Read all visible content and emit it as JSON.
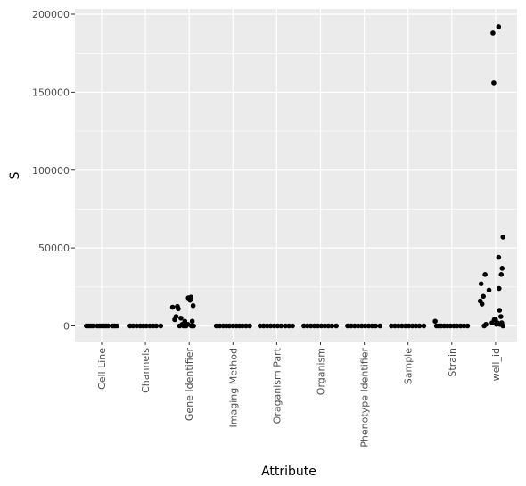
{
  "chart_data": {
    "type": "scatter",
    "xlabel": "Attribute",
    "ylabel": "S",
    "categories": [
      "Cell Line",
      "Channels",
      "Gene Identifier",
      "Imaging Method",
      "Oraganism Part",
      "Organism",
      "Phenotype Identifier",
      "Sample",
      "Strain",
      "well_id"
    ],
    "yticks": [
      0,
      50000,
      100000,
      150000,
      200000
    ],
    "ytick_labels": [
      "0",
      "50000",
      "100000",
      "150000",
      "200000"
    ],
    "ylim": [
      -10000,
      200000
    ],
    "grid": true,
    "colors": {
      "panel": "#ebebeb",
      "grid": "#ffffff",
      "point": "#000000"
    },
    "points": [
      {
        "category": "Cell Line",
        "x": -0.35,
        "y": 0
      },
      {
        "category": "Cell Line",
        "x": -0.3,
        "y": 0
      },
      {
        "category": "Cell Line",
        "x": -0.25,
        "y": 0
      },
      {
        "category": "Cell Line",
        "x": -0.2,
        "y": 0
      },
      {
        "category": "Cell Line",
        "x": -0.1,
        "y": 0
      },
      {
        "category": "Cell Line",
        "x": -0.05,
        "y": 0
      },
      {
        "category": "Cell Line",
        "x": 0.0,
        "y": 0
      },
      {
        "category": "Cell Line",
        "x": 0.05,
        "y": 0
      },
      {
        "category": "Cell Line",
        "x": 0.1,
        "y": 0
      },
      {
        "category": "Cell Line",
        "x": 0.15,
        "y": 0
      },
      {
        "category": "Cell Line",
        "x": 0.25,
        "y": 0
      },
      {
        "category": "Cell Line",
        "x": 0.3,
        "y": 0
      },
      {
        "category": "Cell Line",
        "x": 0.35,
        "y": 0
      },
      {
        "category": "Channels",
        "x": -0.35,
        "y": 0
      },
      {
        "category": "Channels",
        "x": -0.28,
        "y": 0
      },
      {
        "category": "Channels",
        "x": -0.2,
        "y": 0
      },
      {
        "category": "Channels",
        "x": -0.12,
        "y": 0
      },
      {
        "category": "Channels",
        "x": -0.05,
        "y": 0
      },
      {
        "category": "Channels",
        "x": 0.02,
        "y": 0
      },
      {
        "category": "Channels",
        "x": 0.1,
        "y": 0
      },
      {
        "category": "Channels",
        "x": 0.18,
        "y": 0
      },
      {
        "category": "Channels",
        "x": 0.25,
        "y": 0
      },
      {
        "category": "Channels",
        "x": 0.35,
        "y": 0
      },
      {
        "category": "Gene Identifier",
        "x": -0.38,
        "y": 12000
      },
      {
        "category": "Gene Identifier",
        "x": -0.33,
        "y": 4000
      },
      {
        "category": "Gene Identifier",
        "x": -0.3,
        "y": 6000
      },
      {
        "category": "Gene Identifier",
        "x": -0.27,
        "y": 12500
      },
      {
        "category": "Gene Identifier",
        "x": -0.25,
        "y": 11000
      },
      {
        "category": "Gene Identifier",
        "x": -0.22,
        "y": 0
      },
      {
        "category": "Gene Identifier",
        "x": -0.19,
        "y": 5000
      },
      {
        "category": "Gene Identifier",
        "x": -0.16,
        "y": 1000
      },
      {
        "category": "Gene Identifier",
        "x": -0.13,
        "y": 0
      },
      {
        "category": "Gene Identifier",
        "x": -0.1,
        "y": 3000
      },
      {
        "category": "Gene Identifier",
        "x": -0.07,
        "y": 0
      },
      {
        "category": "Gene Identifier",
        "x": -0.03,
        "y": 1000
      },
      {
        "category": "Gene Identifier",
        "x": -0.02,
        "y": 18000
      },
      {
        "category": "Gene Identifier",
        "x": 0.02,
        "y": 16500
      },
      {
        "category": "Gene Identifier",
        "x": 0.04,
        "y": 18500
      },
      {
        "category": "Gene Identifier",
        "x": 0.07,
        "y": 3000
      },
      {
        "category": "Gene Identifier",
        "x": 0.09,
        "y": 13000
      },
      {
        "category": "Gene Identifier",
        "x": 0.1,
        "y": 0
      },
      {
        "category": "Gene Identifier",
        "x": 0.05,
        "y": 0
      },
      {
        "category": "Gene Identifier",
        "x": 0.08,
        "y": 0
      },
      {
        "category": "Imaging Method",
        "x": -0.38,
        "y": 0
      },
      {
        "category": "Imaging Method",
        "x": -0.3,
        "y": 0
      },
      {
        "category": "Imaging Method",
        "x": -0.22,
        "y": 0
      },
      {
        "category": "Imaging Method",
        "x": -0.15,
        "y": 0
      },
      {
        "category": "Imaging Method",
        "x": -0.08,
        "y": 0
      },
      {
        "category": "Imaging Method",
        "x": 0.0,
        "y": 0
      },
      {
        "category": "Imaging Method",
        "x": 0.08,
        "y": 0
      },
      {
        "category": "Imaging Method",
        "x": 0.15,
        "y": 0
      },
      {
        "category": "Imaging Method",
        "x": 0.22,
        "y": 0
      },
      {
        "category": "Imaging Method",
        "x": 0.3,
        "y": 0
      },
      {
        "category": "Imaging Method",
        "x": 0.38,
        "y": 0
      },
      {
        "category": "Oraganism Part",
        "x": -0.38,
        "y": 0
      },
      {
        "category": "Oraganism Part",
        "x": -0.3,
        "y": 0
      },
      {
        "category": "Oraganism Part",
        "x": -0.22,
        "y": 0
      },
      {
        "category": "Oraganism Part",
        "x": -0.14,
        "y": 0
      },
      {
        "category": "Oraganism Part",
        "x": -0.06,
        "y": 0
      },
      {
        "category": "Oraganism Part",
        "x": 0.02,
        "y": 0
      },
      {
        "category": "Oraganism Part",
        "x": 0.1,
        "y": 0
      },
      {
        "category": "Oraganism Part",
        "x": 0.2,
        "y": 0
      },
      {
        "category": "Oraganism Part",
        "x": 0.28,
        "y": 0
      },
      {
        "category": "Oraganism Part",
        "x": 0.36,
        "y": 0
      },
      {
        "category": "Organism",
        "x": -0.38,
        "y": 0
      },
      {
        "category": "Organism",
        "x": -0.3,
        "y": 0
      },
      {
        "category": "Organism",
        "x": -0.22,
        "y": 0
      },
      {
        "category": "Organism",
        "x": -0.14,
        "y": 0
      },
      {
        "category": "Organism",
        "x": -0.06,
        "y": 0
      },
      {
        "category": "Organism",
        "x": 0.02,
        "y": 0
      },
      {
        "category": "Organism",
        "x": 0.1,
        "y": 0
      },
      {
        "category": "Organism",
        "x": 0.18,
        "y": 0
      },
      {
        "category": "Organism",
        "x": 0.26,
        "y": 0
      },
      {
        "category": "Organism",
        "x": 0.36,
        "y": 0
      },
      {
        "category": "Phenotype Identifier",
        "x": -0.38,
        "y": 0
      },
      {
        "category": "Phenotype Identifier",
        "x": -0.3,
        "y": 0
      },
      {
        "category": "Phenotype Identifier",
        "x": -0.22,
        "y": 0
      },
      {
        "category": "Phenotype Identifier",
        "x": -0.14,
        "y": 0
      },
      {
        "category": "Phenotype Identifier",
        "x": -0.06,
        "y": 0
      },
      {
        "category": "Phenotype Identifier",
        "x": 0.02,
        "y": 0
      },
      {
        "category": "Phenotype Identifier",
        "x": 0.1,
        "y": 0
      },
      {
        "category": "Phenotype Identifier",
        "x": 0.18,
        "y": 0
      },
      {
        "category": "Phenotype Identifier",
        "x": 0.26,
        "y": 0
      },
      {
        "category": "Phenotype Identifier",
        "x": 0.36,
        "y": 0
      },
      {
        "category": "Sample",
        "x": -0.38,
        "y": 0
      },
      {
        "category": "Sample",
        "x": -0.3,
        "y": 0
      },
      {
        "category": "Sample",
        "x": -0.22,
        "y": 0
      },
      {
        "category": "Sample",
        "x": -0.14,
        "y": 0
      },
      {
        "category": "Sample",
        "x": -0.06,
        "y": 0
      },
      {
        "category": "Sample",
        "x": 0.02,
        "y": 0
      },
      {
        "category": "Sample",
        "x": 0.1,
        "y": 0
      },
      {
        "category": "Sample",
        "x": 0.18,
        "y": 0
      },
      {
        "category": "Sample",
        "x": 0.26,
        "y": 0
      },
      {
        "category": "Sample",
        "x": 0.36,
        "y": 0
      },
      {
        "category": "Strain",
        "x": -0.38,
        "y": 3000
      },
      {
        "category": "Strain",
        "x": -0.35,
        "y": 0
      },
      {
        "category": "Strain",
        "x": -0.3,
        "y": 0
      },
      {
        "category": "Strain",
        "x": -0.24,
        "y": 0
      },
      {
        "category": "Strain",
        "x": -0.17,
        "y": 0
      },
      {
        "category": "Strain",
        "x": -0.1,
        "y": 0
      },
      {
        "category": "Strain",
        "x": -0.03,
        "y": 0
      },
      {
        "category": "Strain",
        "x": 0.05,
        "y": 0
      },
      {
        "category": "Strain",
        "x": 0.12,
        "y": 0
      },
      {
        "category": "Strain",
        "x": 0.2,
        "y": 0
      },
      {
        "category": "Strain",
        "x": 0.28,
        "y": 0
      },
      {
        "category": "Strain",
        "x": 0.36,
        "y": 0
      },
      {
        "category": "well_id",
        "x": -0.35,
        "y": 16000
      },
      {
        "category": "well_id",
        "x": -0.33,
        "y": 27000
      },
      {
        "category": "well_id",
        "x": -0.31,
        "y": 14000
      },
      {
        "category": "well_id",
        "x": -0.28,
        "y": 19000
      },
      {
        "category": "well_id",
        "x": -0.26,
        "y": 0
      },
      {
        "category": "well_id",
        "x": -0.24,
        "y": 33000
      },
      {
        "category": "well_id",
        "x": -0.22,
        "y": 1000
      },
      {
        "category": "well_id",
        "x": -0.15,
        "y": 23000
      },
      {
        "category": "well_id",
        "x": -0.08,
        "y": 2000
      },
      {
        "category": "well_id",
        "x": -0.06,
        "y": 188000
      },
      {
        "category": "well_id",
        "x": -0.04,
        "y": 156000
      },
      {
        "category": "well_id",
        "x": -0.03,
        "y": 4000
      },
      {
        "category": "well_id",
        "x": 0.0,
        "y": 4000
      },
      {
        "category": "well_id",
        "x": 0.02,
        "y": 1000
      },
      {
        "category": "well_id",
        "x": 0.07,
        "y": 44000
      },
      {
        "category": "well_id",
        "x": 0.08,
        "y": 24000
      },
      {
        "category": "well_id",
        "x": 0.09,
        "y": 10000
      },
      {
        "category": "well_id",
        "x": 0.07,
        "y": 192000
      },
      {
        "category": "well_id",
        "x": 0.12,
        "y": 6000
      },
      {
        "category": "well_id",
        "x": 0.13,
        "y": 33000
      },
      {
        "category": "well_id",
        "x": 0.15,
        "y": 37000
      },
      {
        "category": "well_id",
        "x": 0.17,
        "y": 57000
      },
      {
        "category": "well_id",
        "x": 0.1,
        "y": 1000
      },
      {
        "category": "well_id",
        "x": 0.04,
        "y": 2000
      },
      {
        "category": "well_id",
        "x": 0.14,
        "y": 2000
      },
      {
        "category": "well_id",
        "x": 0.17,
        "y": 0
      }
    ]
  }
}
